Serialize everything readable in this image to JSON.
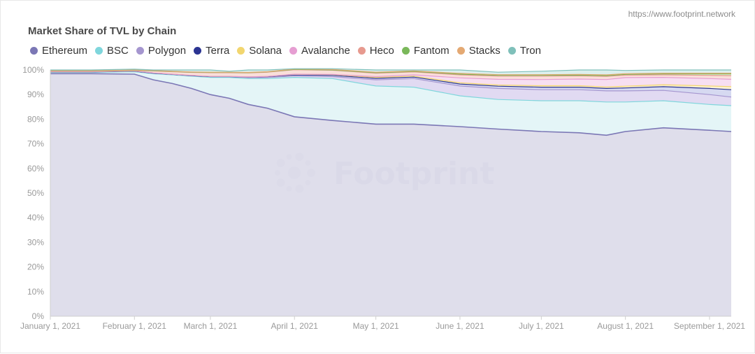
{
  "source_url": "https://www.footprint.network",
  "watermark": "Footprint",
  "chart_data": {
    "type": "area",
    "stacked": true,
    "normalized": true,
    "title": "Market Share of TVL by Chain",
    "legend_position": "top-left",
    "grid": false,
    "x_ticks": [
      "January 1, 2021",
      "February 1, 2021",
      "March 1, 2021",
      "April 1, 2021",
      "May 1, 2021",
      "June 1, 2021",
      "July 1, 2021",
      "August 1, 2021",
      "September 1, 2021"
    ],
    "y_ticks": [
      "0%",
      "10%",
      "20%",
      "30%",
      "40%",
      "50%",
      "60%",
      "70%",
      "80%",
      "90%",
      "100%"
    ],
    "ylim": [
      0,
      100
    ],
    "x": [
      "2021-01-01",
      "2021-01-16",
      "2021-02-01",
      "2021-02-08",
      "2021-02-15",
      "2021-02-22",
      "2021-03-01",
      "2021-03-08",
      "2021-03-15",
      "2021-03-22",
      "2021-04-01",
      "2021-04-15",
      "2021-05-01",
      "2021-05-15",
      "2021-06-01",
      "2021-06-15",
      "2021-07-01",
      "2021-07-15",
      "2021-07-25",
      "2021-08-01",
      "2021-08-15",
      "2021-09-01",
      "2021-09-09"
    ],
    "series": [
      {
        "name": "Ethereum",
        "color": "#7b77b5",
        "fill": "#d9d8e8",
        "values": [
          98.5,
          98.5,
          98.3,
          96.0,
          94.5,
          92.5,
          90.0,
          88.5,
          86.0,
          84.5,
          81.0,
          79.5,
          78.0,
          78.0,
          77.0,
          76.0,
          75.0,
          74.5,
          73.5,
          75.0,
          76.5,
          75.5,
          75.0
        ]
      },
      {
        "name": "BSC",
        "color": "#7fd6dc",
        "fill": "#dff3f6",
        "values": [
          0.5,
          0.5,
          1.0,
          2.5,
          3.5,
          5.0,
          7.0,
          8.5,
          10.5,
          12.0,
          16.0,
          17.0,
          15.5,
          15.0,
          12.5,
          12.0,
          12.5,
          13.0,
          13.5,
          12.0,
          11.0,
          10.5,
          10.5
        ]
      },
      {
        "name": "Polygon",
        "color": "#a596cf",
        "fill": "#dcd3f0",
        "values": [
          0.2,
          0.2,
          0.2,
          0.2,
          0.2,
          0.2,
          0.3,
          0.3,
          0.4,
          0.5,
          0.6,
          0.8,
          2.5,
          3.5,
          4.0,
          4.5,
          4.5,
          4.5,
          4.5,
          4.5,
          4.2,
          4.0,
          3.5
        ]
      },
      {
        "name": "Terra",
        "color": "#2b3492",
        "fill": "#cfd2ee",
        "values": [
          0.0,
          0.0,
          0.0,
          0.0,
          0.0,
          0.0,
          0.0,
          0.0,
          0.2,
          0.3,
          0.4,
          0.5,
          0.6,
          0.6,
          0.8,
          0.9,
          1.0,
          1.0,
          1.0,
          1.2,
          1.5,
          2.5,
          3.0
        ]
      },
      {
        "name": "Solana",
        "color": "#f2d66f",
        "fill": "#fbf1cc",
        "values": [
          0.1,
          0.1,
          0.1,
          0.1,
          0.1,
          0.1,
          0.1,
          0.1,
          0.1,
          0.1,
          0.2,
          0.3,
          0.4,
          0.4,
          0.5,
          0.5,
          0.6,
          0.6,
          0.6,
          0.7,
          0.8,
          1.0,
          1.2
        ]
      },
      {
        "name": "Avalanche",
        "color": "#e69ed2",
        "fill": "#f6d9ee",
        "values": [
          0.0,
          0.0,
          0.0,
          0.0,
          0.0,
          0.0,
          0.0,
          0.0,
          0.0,
          0.0,
          0.1,
          0.1,
          0.3,
          0.5,
          2.0,
          2.3,
          2.5,
          2.7,
          3.0,
          3.5,
          3.0,
          3.0,
          3.0
        ]
      },
      {
        "name": "Heco",
        "color": "#e79a8f",
        "fill": "#f8d9d3",
        "values": [
          0.2,
          0.2,
          0.2,
          0.8,
          1.0,
          1.2,
          1.5,
          1.5,
          1.6,
          1.7,
          1.8,
          1.7,
          1.4,
          1.2,
          1.2,
          1.3,
          1.4,
          1.3,
          1.3,
          1.0,
          1.0,
          1.3,
          1.5
        ]
      },
      {
        "name": "Fantom",
        "color": "#7ab85a",
        "fill": "#dcefcf",
        "values": [
          0.1,
          0.1,
          0.1,
          0.1,
          0.1,
          0.1,
          0.1,
          0.1,
          0.1,
          0.1,
          0.1,
          0.1,
          0.2,
          0.2,
          0.3,
          0.3,
          0.3,
          0.3,
          0.3,
          0.3,
          0.4,
          0.6,
          0.7
        ]
      },
      {
        "name": "Stacks",
        "color": "#e4a973",
        "fill": "#f6e0cd",
        "values": [
          0.1,
          0.1,
          0.1,
          0.1,
          0.1,
          0.1,
          0.1,
          0.1,
          0.1,
          0.1,
          0.2,
          0.2,
          0.2,
          0.2,
          0.3,
          0.3,
          0.3,
          0.3,
          0.3,
          0.3,
          0.3,
          0.3,
          0.3
        ]
      },
      {
        "name": "Tron",
        "color": "#7fc0ba",
        "fill": "#d6ecea",
        "values": [
          0.3,
          0.3,
          0.3,
          0.2,
          0.5,
          0.8,
          0.9,
          0.4,
          1.0,
          0.7,
          0.1,
          0.3,
          0.9,
          0.4,
          1.4,
          1.0,
          1.4,
          1.8,
          2.0,
          1.3,
          1.3,
          1.3,
          1.3
        ]
      }
    ]
  }
}
